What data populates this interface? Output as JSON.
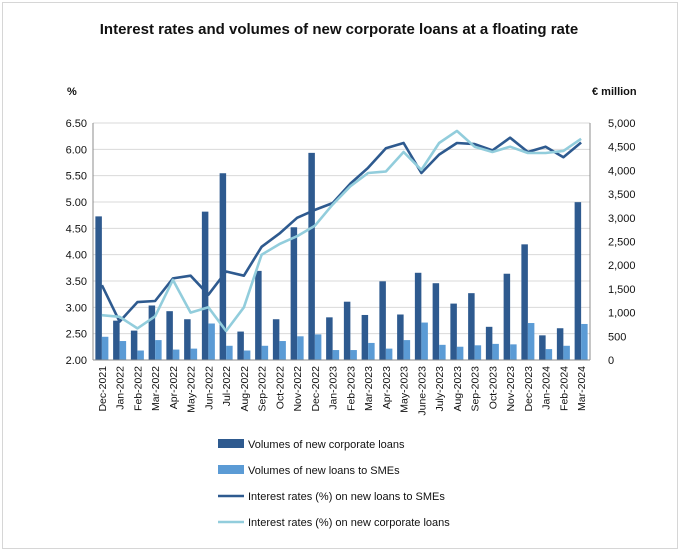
{
  "chart_data": {
    "type": "bar",
    "title": "Interest rates and volumes of new corporate loans at a floating rate",
    "ylabel_left": "%",
    "ylabel_right": "€ million",
    "ylim_left": [
      2.0,
      6.5
    ],
    "ylim_right": [
      0,
      5000
    ],
    "yticks_left": [
      "2.00",
      "2.50",
      "3.00",
      "3.50",
      "4.00",
      "4.50",
      "5.00",
      "5.50",
      "6.00",
      "6.50"
    ],
    "yticks_right": [
      "0",
      "500",
      "1,000",
      "1,500",
      "2,000",
      "2,500",
      "3,000",
      "3,500",
      "4,000",
      "4,500",
      "5,000"
    ],
    "categories": [
      "Dec-2021",
      "Jan-2022",
      "Feb-2022",
      "Mar-2022",
      "Apr-2022",
      "May-2022",
      "Jun-2022",
      "Jul-2022",
      "Aug-2022",
      "Sep-2022",
      "Oct-2022",
      "Nov-2022",
      "Dec-2022",
      "Jan-2023",
      "Feb-2023",
      "Mar-2023",
      "Apr-2023",
      "May-2023",
      "June-2023",
      "July-2023",
      "Aug-2023",
      "Sep-2023",
      "Oct-2023",
      "Nov-2023",
      "Dec-2023",
      "Jan-2024",
      "Feb-2024",
      "Mar-2024"
    ],
    "series": [
      {
        "name": "Volumes of new corporate loans",
        "type": "bar",
        "axis": "right",
        "color": "#2e5a8f",
        "values": [
          3030,
          830,
          620,
          1150,
          1030,
          860,
          3130,
          3940,
          600,
          1880,
          860,
          2800,
          4370,
          900,
          1230,
          950,
          1660,
          960,
          1840,
          1620,
          1190,
          1410,
          700,
          1820,
          2440,
          520,
          670,
          3330
        ]
      },
      {
        "name": "Volumes of new loans to SMEs",
        "type": "bar",
        "axis": "right",
        "color": "#5b9bd5",
        "values": [
          490,
          400,
          200,
          420,
          220,
          240,
          770,
          300,
          200,
          300,
          400,
          500,
          540,
          210,
          210,
          360,
          240,
          420,
          790,
          320,
          280,
          310,
          340,
          330,
          780,
          230,
          300,
          760
        ]
      },
      {
        "name": "Interest rates (%) on new loans to SMEs",
        "type": "line",
        "axis": "left",
        "color": "#2e5a8f",
        "values": [
          3.42,
          2.73,
          3.1,
          3.12,
          3.55,
          3.6,
          3.24,
          3.68,
          3.6,
          4.15,
          4.4,
          4.7,
          4.85,
          4.98,
          5.35,
          5.65,
          6.02,
          6.12,
          5.55,
          5.9,
          6.12,
          6.1,
          5.98,
          6.22,
          5.95,
          6.05,
          5.85,
          6.13
        ]
      },
      {
        "name": "Interest rates (%) on new corporate loans",
        "type": "line",
        "axis": "left",
        "color": "#92cddc",
        "values": [
          2.85,
          2.82,
          2.6,
          2.83,
          3.52,
          2.9,
          3.0,
          2.55,
          3.0,
          4.0,
          4.2,
          4.35,
          4.55,
          4.95,
          5.3,
          5.55,
          5.58,
          5.95,
          5.61,
          6.12,
          6.35,
          6.05,
          5.95,
          6.05,
          5.93,
          5.93,
          5.97,
          6.2
        ]
      }
    ],
    "grid": true,
    "legend_position": "bottom"
  }
}
